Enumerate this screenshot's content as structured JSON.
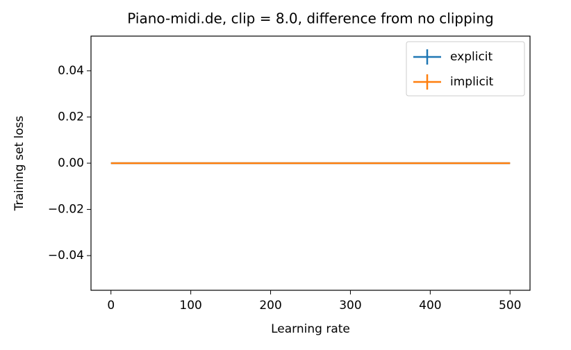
{
  "chart_data": {
    "type": "line",
    "title": "Piano-midi.de, clip = 8.0, difference from no clipping",
    "x_label": "Learning rate",
    "y_label": "Training set loss",
    "x": [
      0,
      100,
      200,
      300,
      400,
      500
    ],
    "series": [
      {
        "name": "explicit",
        "color": "#1f77b4",
        "values": [
          0,
          0,
          0,
          0,
          0,
          0
        ]
      },
      {
        "name": "implicit",
        "color": "#ff7f0e",
        "values": [
          0,
          0,
          0,
          0,
          0,
          0
        ]
      }
    ],
    "xlim": [
      -25,
      525
    ],
    "xticks": [
      0,
      100,
      200,
      300,
      400,
      500
    ],
    "ylim": [
      -0.055,
      0.055
    ],
    "yticks": [
      {
        "value": -0.04,
        "label": "−0.04"
      },
      {
        "value": -0.02,
        "label": "−0.02"
      },
      {
        "value": 0,
        "label": "0.00"
      },
      0.02,
      0.04
    ],
    "legend": "upper right"
  }
}
